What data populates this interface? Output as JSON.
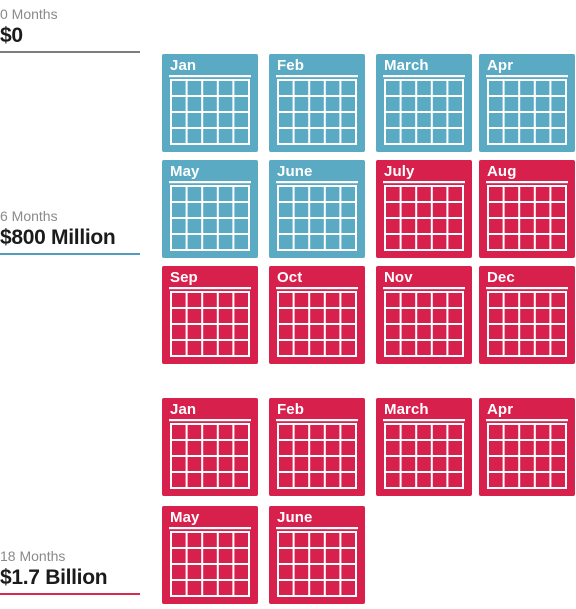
{
  "milestones": [
    {
      "period": "0 Months",
      "amount": "$0"
    },
    {
      "period": "6 Months",
      "amount": "$800 Million"
    },
    {
      "period": "18 Months",
      "amount": "$1.7 Billion"
    }
  ],
  "colors": {
    "blue": "#5aaac4",
    "red": "#d8204d"
  },
  "calendars": [
    {
      "month": "Jan",
      "status": "blue"
    },
    {
      "month": "Feb",
      "status": "blue"
    },
    {
      "month": "March",
      "status": "blue"
    },
    {
      "month": "Apr",
      "status": "blue"
    },
    {
      "month": "May",
      "status": "blue"
    },
    {
      "month": "June",
      "status": "blue"
    },
    {
      "month": "July",
      "status": "red"
    },
    {
      "month": "Aug",
      "status": "red"
    },
    {
      "month": "Sep",
      "status": "red"
    },
    {
      "month": "Oct",
      "status": "red"
    },
    {
      "month": "Nov",
      "status": "red"
    },
    {
      "month": "Dec",
      "status": "red"
    },
    {
      "month": "Jan",
      "status": "red"
    },
    {
      "month": "Feb",
      "status": "red"
    },
    {
      "month": "March",
      "status": "red"
    },
    {
      "month": "Apr",
      "status": "red"
    },
    {
      "month": "May",
      "status": "red"
    },
    {
      "month": "June",
      "status": "red"
    }
  ]
}
